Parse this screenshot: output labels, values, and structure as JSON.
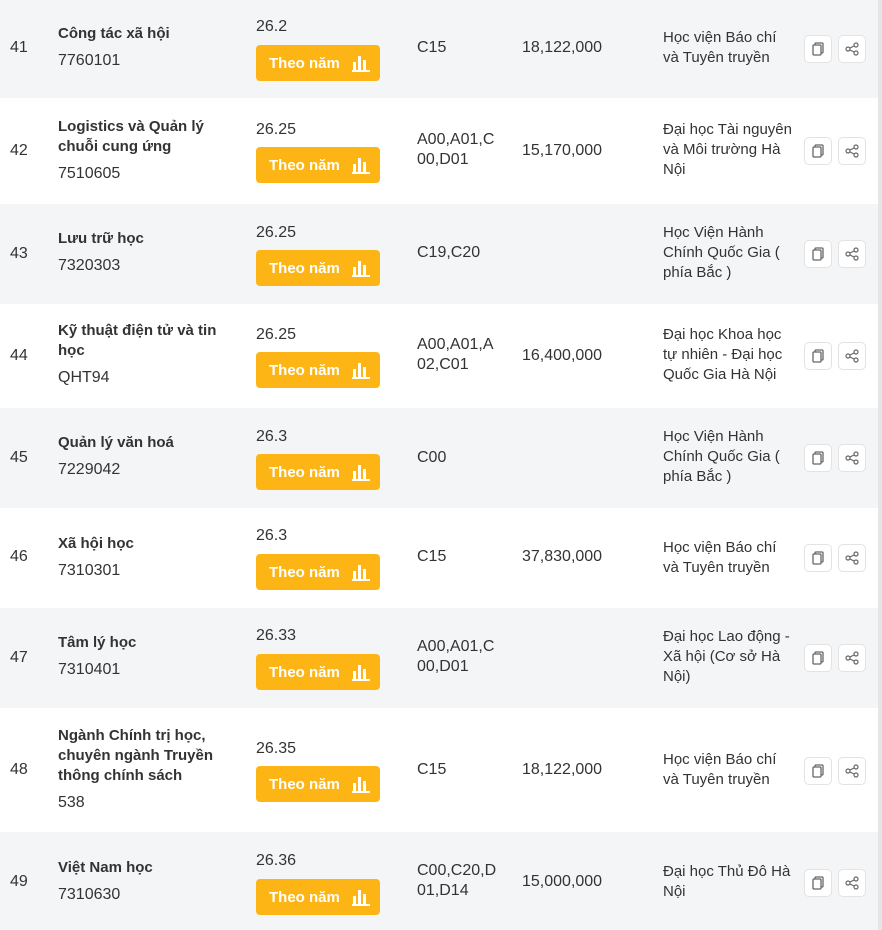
{
  "button_label": "Theo năm",
  "accent_color": "#fdb515",
  "icons": {
    "chart": "bar-chart-icon",
    "copy": "copy-icon",
    "share": "share-icon"
  },
  "rows": [
    {
      "index": "41",
      "major": "Công tác xã hội",
      "code": "7760101",
      "score": "26.2",
      "combos": "C15",
      "fee": "18,122,000",
      "school": "Học viện Báo chí và Tuyên truyền"
    },
    {
      "index": "42",
      "major": "Logistics và Quản lý chuỗi cung ứng",
      "code": "7510605",
      "score": "26.25",
      "combos": "A00,A01,C00,D01",
      "fee": "15,170,000",
      "school": "Đại học Tài nguyên và Môi trường Hà Nội"
    },
    {
      "index": "43",
      "major": "Lưu trữ học",
      "code": "7320303",
      "score": "26.25",
      "combos": "C19,C20",
      "fee": "",
      "school": "Học Viện Hành Chính Quốc Gia ( phía Bắc )"
    },
    {
      "index": "44",
      "major": "Kỹ thuật điện tử và tin học",
      "code": "QHT94",
      "score": "26.25",
      "combos": "A00,A01,A02,C01",
      "fee": "16,400,000",
      "school": "Đại học Khoa học tự nhiên - Đại học Quốc Gia Hà Nội"
    },
    {
      "index": "45",
      "major": "Quản lý văn hoá",
      "code": "7229042",
      "score": "26.3",
      "combos": "C00",
      "fee": "",
      "school": "Học Viện Hành Chính Quốc Gia ( phía Bắc )"
    },
    {
      "index": "46",
      "major": "Xã hội học",
      "code": "7310301",
      "score": "26.3",
      "combos": "C15",
      "fee": "37,830,000",
      "school": "Học viện Báo chí và Tuyên truyền"
    },
    {
      "index": "47",
      "major": "Tâm lý học",
      "code": "7310401",
      "score": "26.33",
      "combos": "A00,A01,C00,D01",
      "fee": "",
      "school": "Đại học Lao động - Xã hội (Cơ sở Hà Nội)"
    },
    {
      "index": "48",
      "major": "Ngành Chính trị học, chuyên ngành Truyền thông chính sách",
      "code": "538",
      "score": "26.35",
      "combos": "C15",
      "fee": "18,122,000",
      "school": "Học viện Báo chí và Tuyên truyền"
    },
    {
      "index": "49",
      "major": "Việt Nam học",
      "code": "7310630",
      "score": "26.36",
      "combos": "C00,C20,D01,D14",
      "fee": "15,000,000",
      "school": "Đại học Thủ Đô Hà Nội"
    }
  ]
}
